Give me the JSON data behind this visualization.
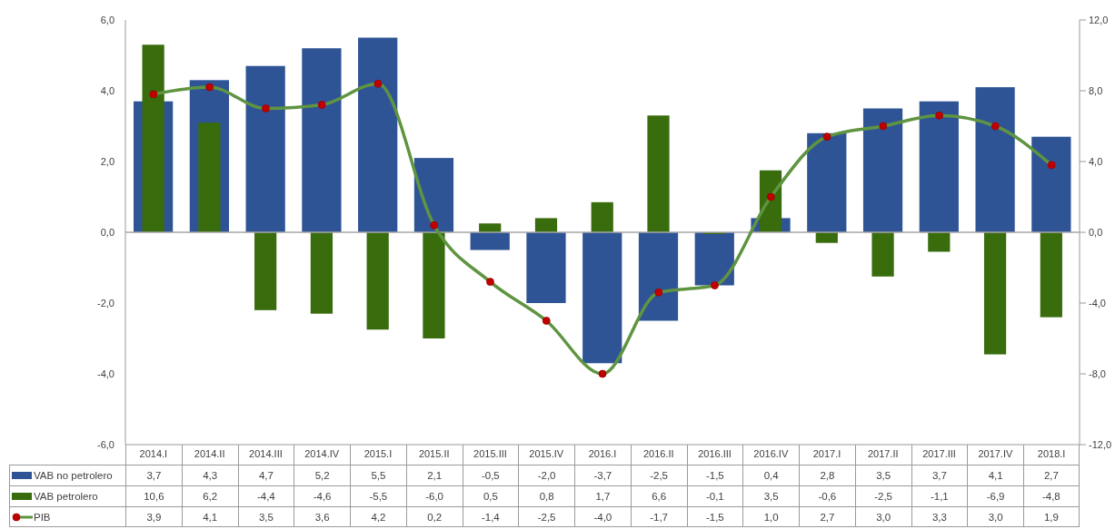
{
  "chart_data": {
    "type": "bar",
    "categories": [
      "2014.I",
      "2014.II",
      "2014.III",
      "2014.IV",
      "2015.I",
      "2015.II",
      "2015.III",
      "2015.IV",
      "2016.I",
      "2016.II",
      "2016.III",
      "2016.IV",
      "2017.I",
      "2017.II",
      "2017.III",
      "2017.IV",
      "2018.I"
    ],
    "series": [
      {
        "name": "VAB no petrolero",
        "color": "#2f5496",
        "values": [
          3.7,
          4.3,
          4.7,
          5.2,
          5.5,
          2.1,
          -0.5,
          -2.0,
          -3.7,
          -2.5,
          -1.5,
          0.4,
          2.8,
          3.5,
          3.7,
          4.1,
          2.7
        ],
        "value_labels": [
          "3,7",
          "4,3",
          "4,7",
          "5,2",
          "5,5",
          "2,1",
          "-0,5",
          "-2,0",
          "-3,7",
          "-2,5",
          "-1,5",
          "0,4",
          "2,8",
          "3,5",
          "3,7",
          "4,1",
          "2,7"
        ]
      },
      {
        "name": "VAB petrolero",
        "axis": "y2",
        "color": "#386c0c",
        "values": [
          10.6,
          6.2,
          -4.4,
          -4.6,
          -5.5,
          -6.0,
          0.5,
          0.8,
          1.7,
          6.6,
          -0.1,
          3.5,
          -0.6,
          -2.5,
          -1.1,
          -6.9,
          -4.8
        ],
        "value_labels": [
          "10,6",
          "6,2",
          "-4,4",
          "-4,6",
          "-5,5",
          "-6,0",
          "0,5",
          "0,8",
          "1,7",
          "6,6",
          "-0,1",
          "3,5",
          "-0,6",
          "-2,5",
          "-1,1",
          "-6,9",
          "-4,8"
        ]
      },
      {
        "name": "PIB",
        "type": "line",
        "color": "#5f9440",
        "marker": "circle",
        "colors": [
          "#c00000",
          "#c00000",
          "#c00000",
          "#c00000",
          "#c00000",
          "#c00000",
          "#c00000",
          "#c00000",
          "#c00000",
          "#c00000",
          "#c00000",
          "#c00000",
          "#c00000",
          "#c00000",
          "#c00000",
          "#c00000",
          "#c00000"
        ],
        "values": [
          3.9,
          4.1,
          3.5,
          3.6,
          4.2,
          0.2,
          -1.4,
          -2.5,
          -4.0,
          -1.7,
          -1.5,
          1.0,
          2.7,
          3.0,
          3.3,
          3.0,
          1.9
        ],
        "value_labels": [
          "3,9",
          "4,1",
          "3,5",
          "3,6",
          "4,2",
          "0,2",
          "-1,4",
          "-2,5",
          "-4,0",
          "-1,7",
          "-1,5",
          "1,0",
          "2,7",
          "3,0",
          "3,3",
          "3,0",
          "1,9"
        ]
      }
    ],
    "ylim": [
      -6,
      6
    ],
    "yticks": [
      {
        "value": -6,
        "label": "-6,0"
      },
      {
        "value": -4,
        "label": "-4,0"
      },
      {
        "value": -2,
        "label": "-2,0"
      },
      {
        "value": 0,
        "label": "0,0"
      },
      {
        "value": 2,
        "label": "2,0"
      },
      {
        "value": 4,
        "label": "4,0"
      },
      {
        "value": 6,
        "label": "6,0"
      }
    ],
    "y2lim": [
      -12,
      12
    ],
    "y2ticks": [
      {
        "value": -12,
        "label": "-12,0"
      },
      {
        "value": -8,
        "label": "-8,0"
      },
      {
        "value": -4,
        "label": "-4,0"
      },
      {
        "value": 0,
        "label": "0,0"
      },
      {
        "value": 4,
        "label": "4,0"
      },
      {
        "value": 8,
        "label": "8,0"
      },
      {
        "value": 12,
        "label": "12,0"
      }
    ],
    "ref_lines": [
      {
        "axis": "y",
        "value": 0,
        "color": "#a6a6a6"
      }
    ],
    "legend": "bottom"
  }
}
